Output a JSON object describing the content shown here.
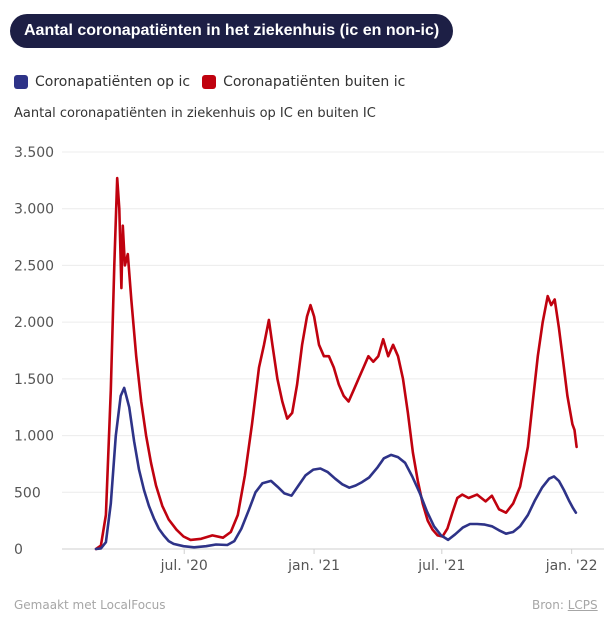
{
  "header": {
    "title": "Aantal coronapatiënten in het ziekenhuis (ic en non-ic)"
  },
  "legend": [
    {
      "label": "Coronapatiënten op ic",
      "color": "#2e3388"
    },
    {
      "label": "Coronapatiënten buiten ic",
      "color": "#c0020f"
    }
  ],
  "footer": {
    "made_with": "Gemaakt met LocalFocus",
    "source_label": "Bron:",
    "source_link": "LCPS"
  },
  "chart_data": {
    "type": "line",
    "title": "Aantal coronapatiënten in het ziekenhuis (ic en non-ic)",
    "subtitle": "Aantal coronapatiënten in ziekenhuis op IC en buiten IC",
    "x_range": [
      "2020-02-27",
      "2022-01-10"
    ],
    "ylim": [
      0,
      3500
    ],
    "yticks": [
      0,
      500,
      1000,
      1500,
      2000,
      2500,
      3000,
      3500
    ],
    "ytick_labels": [
      "0",
      "500",
      "1.000",
      "1.500",
      "2.000",
      "2.500",
      "3.000",
      "3.500"
    ],
    "xticks": [
      {
        "date": "2020-07-01",
        "label": "jul. '20"
      },
      {
        "date": "2021-01-01",
        "label": "jan. '21"
      },
      {
        "date": "2021-07-01",
        "label": "jul. '21"
      },
      {
        "date": "2022-01-01",
        "label": "jan. '22"
      }
    ],
    "grid": "horizontal",
    "legend_position": "top-left",
    "series": [
      {
        "name": "Coronapatiënten op ic",
        "color": "#2e3388",
        "points": [
          [
            "2020-02-27",
            0
          ],
          [
            "2020-03-05",
            5
          ],
          [
            "2020-03-12",
            60
          ],
          [
            "2020-03-19",
            400
          ],
          [
            "2020-03-26",
            1000
          ],
          [
            "2020-04-02",
            1350
          ],
          [
            "2020-04-07",
            1420
          ],
          [
            "2020-04-14",
            1250
          ],
          [
            "2020-04-21",
            950
          ],
          [
            "2020-04-28",
            700
          ],
          [
            "2020-05-05",
            520
          ],
          [
            "2020-05-12",
            380
          ],
          [
            "2020-05-19",
            270
          ],
          [
            "2020-05-26",
            180
          ],
          [
            "2020-06-02",
            120
          ],
          [
            "2020-06-09",
            70
          ],
          [
            "2020-06-16",
            45
          ],
          [
            "2020-06-30",
            25
          ],
          [
            "2020-07-15",
            15
          ],
          [
            "2020-08-01",
            25
          ],
          [
            "2020-08-15",
            40
          ],
          [
            "2020-08-31",
            35
          ],
          [
            "2020-09-10",
            70
          ],
          [
            "2020-09-20",
            180
          ],
          [
            "2020-10-01",
            350
          ],
          [
            "2020-10-10",
            500
          ],
          [
            "2020-10-20",
            580
          ],
          [
            "2020-11-01",
            600
          ],
          [
            "2020-11-10",
            550
          ],
          [
            "2020-11-20",
            490
          ],
          [
            "2020-11-30",
            470
          ],
          [
            "2020-12-10",
            560
          ],
          [
            "2020-12-20",
            650
          ],
          [
            "2020-12-31",
            700
          ],
          [
            "2021-01-10",
            710
          ],
          [
            "2021-01-20",
            680
          ],
          [
            "2021-01-31",
            620
          ],
          [
            "2021-02-10",
            570
          ],
          [
            "2021-02-20",
            540
          ],
          [
            "2021-03-01",
            560
          ],
          [
            "2021-03-10",
            590
          ],
          [
            "2021-03-20",
            630
          ],
          [
            "2021-04-01",
            720
          ],
          [
            "2021-04-10",
            800
          ],
          [
            "2021-04-20",
            830
          ],
          [
            "2021-04-30",
            810
          ],
          [
            "2021-05-10",
            760
          ],
          [
            "2021-05-20",
            640
          ],
          [
            "2021-05-31",
            490
          ],
          [
            "2021-06-10",
            330
          ],
          [
            "2021-06-20",
            200
          ],
          [
            "2021-06-30",
            120
          ],
          [
            "2021-07-10",
            80
          ],
          [
            "2021-07-20",
            130
          ],
          [
            "2021-07-31",
            190
          ],
          [
            "2021-08-10",
            220
          ],
          [
            "2021-08-20",
            220
          ],
          [
            "2021-08-31",
            215
          ],
          [
            "2021-09-10",
            200
          ],
          [
            "2021-09-20",
            165
          ],
          [
            "2021-09-30",
            135
          ],
          [
            "2021-10-10",
            150
          ],
          [
            "2021-10-20",
            200
          ],
          [
            "2021-10-31",
            300
          ],
          [
            "2021-11-10",
            430
          ],
          [
            "2021-11-20",
            540
          ],
          [
            "2021-11-30",
            620
          ],
          [
            "2021-12-07",
            640
          ],
          [
            "2021-12-14",
            600
          ],
          [
            "2021-12-21",
            520
          ],
          [
            "2021-12-28",
            430
          ],
          [
            "2022-01-03",
            360
          ],
          [
            "2022-01-07",
            320
          ]
        ]
      },
      {
        "name": "Coronapatiënten buiten ic",
        "color": "#c0020f",
        "points": [
          [
            "2020-02-27",
            0
          ],
          [
            "2020-03-05",
            30
          ],
          [
            "2020-03-12",
            300
          ],
          [
            "2020-03-19",
            1400
          ],
          [
            "2020-03-24",
            2500
          ],
          [
            "2020-03-28",
            3270
          ],
          [
            "2020-03-31",
            3000
          ],
          [
            "2020-04-03",
            2300
          ],
          [
            "2020-04-05",
            2850
          ],
          [
            "2020-04-08",
            2500
          ],
          [
            "2020-04-12",
            2600
          ],
          [
            "2020-04-17",
            2200
          ],
          [
            "2020-04-24",
            1700
          ],
          [
            "2020-05-01",
            1300
          ],
          [
            "2020-05-08",
            1000
          ],
          [
            "2020-05-15",
            760
          ],
          [
            "2020-05-22",
            560
          ],
          [
            "2020-05-31",
            380
          ],
          [
            "2020-06-09",
            260
          ],
          [
            "2020-06-20",
            170
          ],
          [
            "2020-06-30",
            110
          ],
          [
            "2020-07-10",
            80
          ],
          [
            "2020-07-25",
            90
          ],
          [
            "2020-08-10",
            120
          ],
          [
            "2020-08-25",
            100
          ],
          [
            "2020-09-05",
            150
          ],
          [
            "2020-09-15",
            300
          ],
          [
            "2020-09-25",
            650
          ],
          [
            "2020-10-05",
            1100
          ],
          [
            "2020-10-15",
            1600
          ],
          [
            "2020-10-22",
            1800
          ],
          [
            "2020-10-29",
            2020
          ],
          [
            "2020-11-03",
            1800
          ],
          [
            "2020-11-10",
            1500
          ],
          [
            "2020-11-17",
            1300
          ],
          [
            "2020-11-24",
            1150
          ],
          [
            "2020-12-01",
            1200
          ],
          [
            "2020-12-08",
            1450
          ],
          [
            "2020-12-15",
            1800
          ],
          [
            "2020-12-22",
            2050
          ],
          [
            "2020-12-27",
            2150
          ],
          [
            "2021-01-01",
            2050
          ],
          [
            "2021-01-08",
            1800
          ],
          [
            "2021-01-15",
            1700
          ],
          [
            "2021-01-22",
            1700
          ],
          [
            "2021-01-29",
            1600
          ],
          [
            "2021-02-05",
            1450
          ],
          [
            "2021-02-12",
            1350
          ],
          [
            "2021-02-19",
            1300
          ],
          [
            "2021-02-26",
            1400
          ],
          [
            "2021-03-05",
            1500
          ],
          [
            "2021-03-12",
            1600
          ],
          [
            "2021-03-19",
            1700
          ],
          [
            "2021-03-26",
            1650
          ],
          [
            "2021-04-02",
            1700
          ],
          [
            "2021-04-09",
            1850
          ],
          [
            "2021-04-16",
            1700
          ],
          [
            "2021-04-23",
            1800
          ],
          [
            "2021-04-30",
            1700
          ],
          [
            "2021-05-07",
            1500
          ],
          [
            "2021-05-14",
            1200
          ],
          [
            "2021-05-21",
            850
          ],
          [
            "2021-05-28",
            600
          ],
          [
            "2021-06-04",
            400
          ],
          [
            "2021-06-11",
            250
          ],
          [
            "2021-06-18",
            170
          ],
          [
            "2021-06-25",
            120
          ],
          [
            "2021-07-02",
            110
          ],
          [
            "2021-07-09",
            180
          ],
          [
            "2021-07-16",
            320
          ],
          [
            "2021-07-23",
            450
          ],
          [
            "2021-07-30",
            480
          ],
          [
            "2021-08-08",
            450
          ],
          [
            "2021-08-20",
            480
          ],
          [
            "2021-09-01",
            420
          ],
          [
            "2021-09-10",
            470
          ],
          [
            "2021-09-20",
            350
          ],
          [
            "2021-09-30",
            320
          ],
          [
            "2021-10-10",
            400
          ],
          [
            "2021-10-20",
            550
          ],
          [
            "2021-10-31",
            900
          ],
          [
            "2021-11-07",
            1300
          ],
          [
            "2021-11-14",
            1700
          ],
          [
            "2021-11-21",
            2000
          ],
          [
            "2021-11-28",
            2230
          ],
          [
            "2021-12-03",
            2150
          ],
          [
            "2021-12-08",
            2200
          ],
          [
            "2021-12-14",
            1950
          ],
          [
            "2021-12-20",
            1650
          ],
          [
            "2021-12-26",
            1350
          ],
          [
            "2022-01-02",
            1100
          ],
          [
            "2022-01-05",
            1050
          ],
          [
            "2022-01-08",
            900
          ]
        ]
      }
    ]
  }
}
